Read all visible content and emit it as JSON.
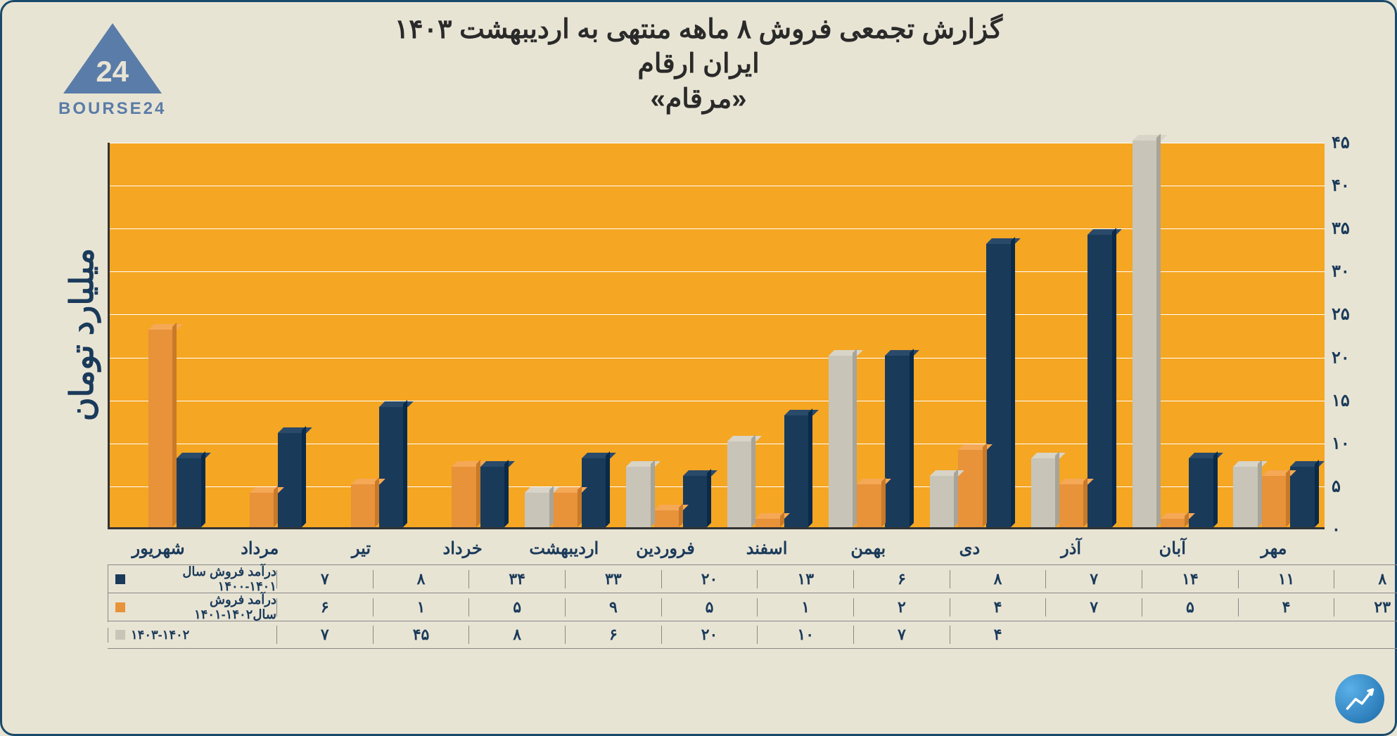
{
  "logo_brand": "BOURSE24",
  "logo_number": "24",
  "title_line1": "گزارش تجمعی فروش ۸ ماهه منتهی به اردیبهشت ۱۴۰۳",
  "title_line2": "ایران ارقام",
  "title_line3": "«مرقام»",
  "y_axis_label": "میلیارد تومان",
  "chart": {
    "type": "bar",
    "background_color": "#f5a623",
    "grid_color": "#ffffff",
    "page_bg": "#e8e4d4",
    "border_color": "#1a4a6a",
    "ylim": [
      0,
      45
    ],
    "ytick_step": 5,
    "y_ticks": [
      "۰",
      "۵",
      "۱۰",
      "۱۵",
      "۲۰",
      "۲۵",
      "۳۰",
      "۳۵",
      "۴۰",
      "۴۵"
    ],
    "categories": [
      "مهر",
      "آبان",
      "آذر",
      "دی",
      "بهمن",
      "اسفند",
      "فروردین",
      "اردیبهشت",
      "خرداد",
      "تیر",
      "مرداد",
      "شهریور"
    ],
    "series": [
      {
        "name": "درآمد فروش سال ۱۴۰۱-۱۴۰۰",
        "color": "#1a3a5a",
        "color_top": "#2a4a6a",
        "color_side": "#0a2a4a",
        "values": [
          7,
          8,
          34,
          33,
          20,
          13,
          6,
          8,
          7,
          14,
          11,
          8
        ],
        "display": [
          "۷",
          "۸",
          "۳۴",
          "۳۳",
          "۲۰",
          "۱۳",
          "۶",
          "۸",
          "۷",
          "۱۴",
          "۱۱",
          "۸"
        ]
      },
      {
        "name": "درآمد فروش سال۱۴۰۲-۱۴۰۱",
        "color": "#e8923a",
        "color_top": "#f5a855",
        "color_side": "#c87a28",
        "values": [
          6,
          1,
          5,
          9,
          5,
          1,
          2,
          4,
          7,
          5,
          4,
          23
        ],
        "display": [
          "۶",
          "۱",
          "۵",
          "۹",
          "۵",
          "۱",
          "۲",
          "۴",
          "۷",
          "۵",
          "۴",
          "۲۳"
        ]
      },
      {
        "name": "۱۴۰۳-۱۴۰۲",
        "color": "#c8c4b8",
        "color_top": "#d8d4c8",
        "color_side": "#a8a498",
        "values": [
          7,
          45,
          8,
          6,
          20,
          10,
          7,
          4,
          null,
          null,
          null,
          null
        ],
        "display": [
          "۷",
          "۴۵",
          "۸",
          "۶",
          "۲۰",
          "۱۰",
          "۷",
          "۴",
          "",
          "",
          "",
          ""
        ]
      }
    ]
  }
}
